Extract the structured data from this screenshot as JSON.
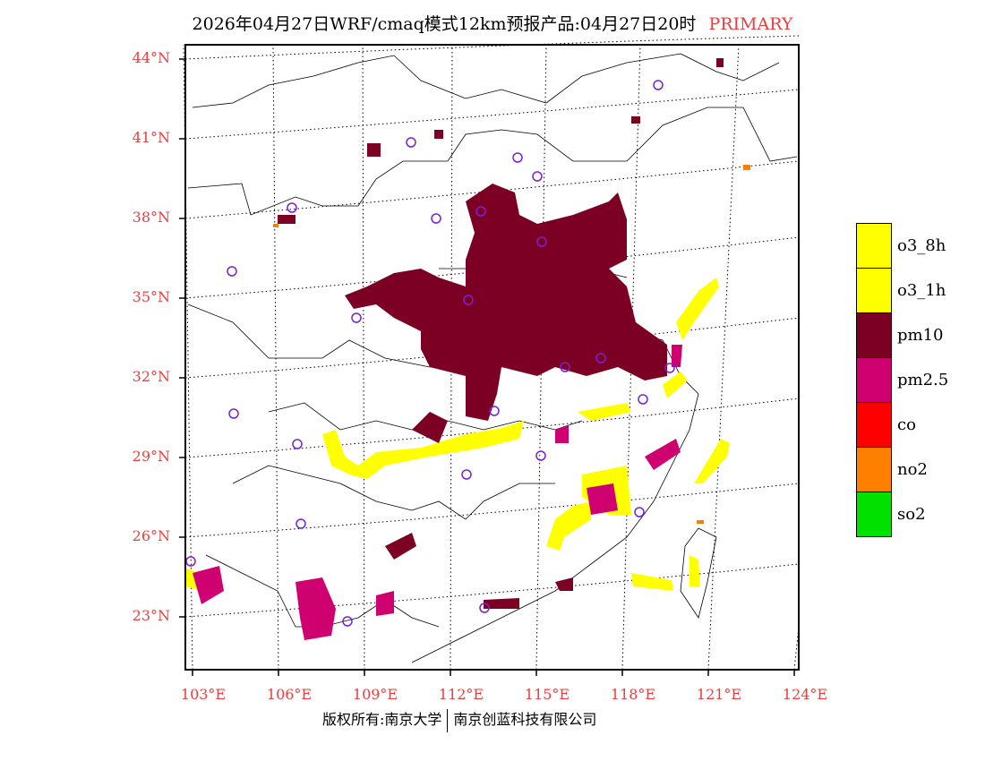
{
  "title": {
    "main": "2026年04月27日WRF/cmaq模式12km预报产品:04月27日20时",
    "tag": "PRIMARY"
  },
  "lat_labels": [
    "44°N",
    "41°N",
    "38°N",
    "35°N",
    "32°N",
    "29°N",
    "26°N",
    "23°N"
  ],
  "lon_labels": [
    "103°E",
    "106°E",
    "109°E",
    "112°E",
    "115°E",
    "118°E",
    "121°E",
    "124°E"
  ],
  "legend": [
    {
      "label": "o3_8h",
      "color": "#ffff00"
    },
    {
      "label": "o3_1h",
      "color": "#ffff00"
    },
    {
      "label": "pm10",
      "color": "#7c0024"
    },
    {
      "label": "pm2.5",
      "color": "#cf0070"
    },
    {
      "label": "co",
      "color": "#ff0000"
    },
    {
      "label": "no2",
      "color": "#ff7f00"
    },
    {
      "label": "so2",
      "color": "#00e100"
    }
  ],
  "footer": {
    "left": "版权所有:南京大学",
    "right": "南京创蓝科技有限公司"
  }
}
